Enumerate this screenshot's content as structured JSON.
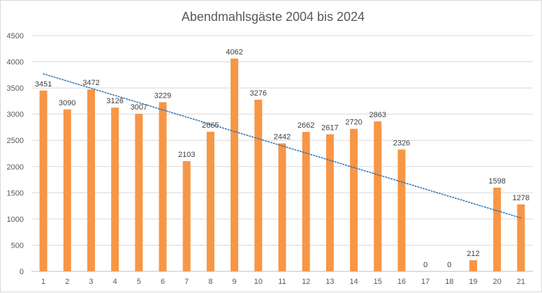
{
  "chart_data": {
    "type": "bar",
    "title": "Abendmahlsgäste 2004 bis 2024",
    "xlabel": "",
    "ylabel": "",
    "categories": [
      "1",
      "2",
      "3",
      "4",
      "5",
      "6",
      "7",
      "8",
      "9",
      "10",
      "11",
      "12",
      "13",
      "14",
      "15",
      "16",
      "17",
      "18",
      "19",
      "20",
      "21"
    ],
    "series": [
      {
        "values": [
          3451,
          3090,
          3472,
          3126,
          3007,
          3229,
          2103,
          2665,
          4062,
          3276,
          2442,
          2662,
          2617,
          2720,
          2863,
          2326,
          0,
          0,
          212,
          1598,
          1278
        ],
        "color": "#f79646"
      }
    ],
    "trendline": {
      "type": "linear",
      "style": "dotted",
      "color": "#2e75b6",
      "start_value": 3770,
      "end_value": 1020
    },
    "y_ticks": [
      "0",
      "500",
      "1000",
      "1500",
      "2000",
      "2500",
      "3000",
      "3500",
      "4000",
      "4500"
    ],
    "ylim": [
      0,
      4500
    ],
    "grid": true,
    "legend": "none",
    "data_labels": true
  }
}
